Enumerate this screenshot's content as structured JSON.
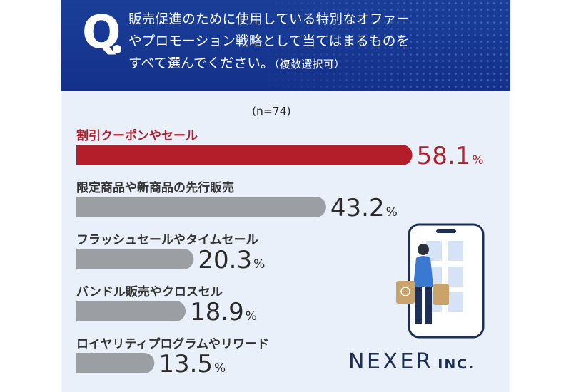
{
  "header": {
    "q_mark": "Q",
    "question_line1": "販売促進のために使用している特別なオファー",
    "question_line2": "やプロモーション戦略として当てはまるものを",
    "question_line3": "すべて選んでください。",
    "question_note": "（複数選択可）"
  },
  "sample_note": "(n=74)",
  "chart_data": {
    "type": "bar",
    "orientation": "horizontal",
    "categories": [
      "割引クーポンやセール",
      "限定商品や新商品の先行販売",
      "フラッシュセールやタイムセール",
      "バンドル販売やクロスセル",
      "ロイヤリティプログラムやリワード"
    ],
    "values": [
      58.1,
      43.2,
      20.3,
      18.9,
      13.5
    ],
    "unit": "%",
    "highlight_index": 0,
    "colors": {
      "highlight": "#b31e2a",
      "default": "#9b9ea3",
      "label_highlight": "#b31e2a",
      "label_default": "#333333"
    }
  },
  "logo": {
    "name": "NEXER",
    "suffix": "INC."
  }
}
